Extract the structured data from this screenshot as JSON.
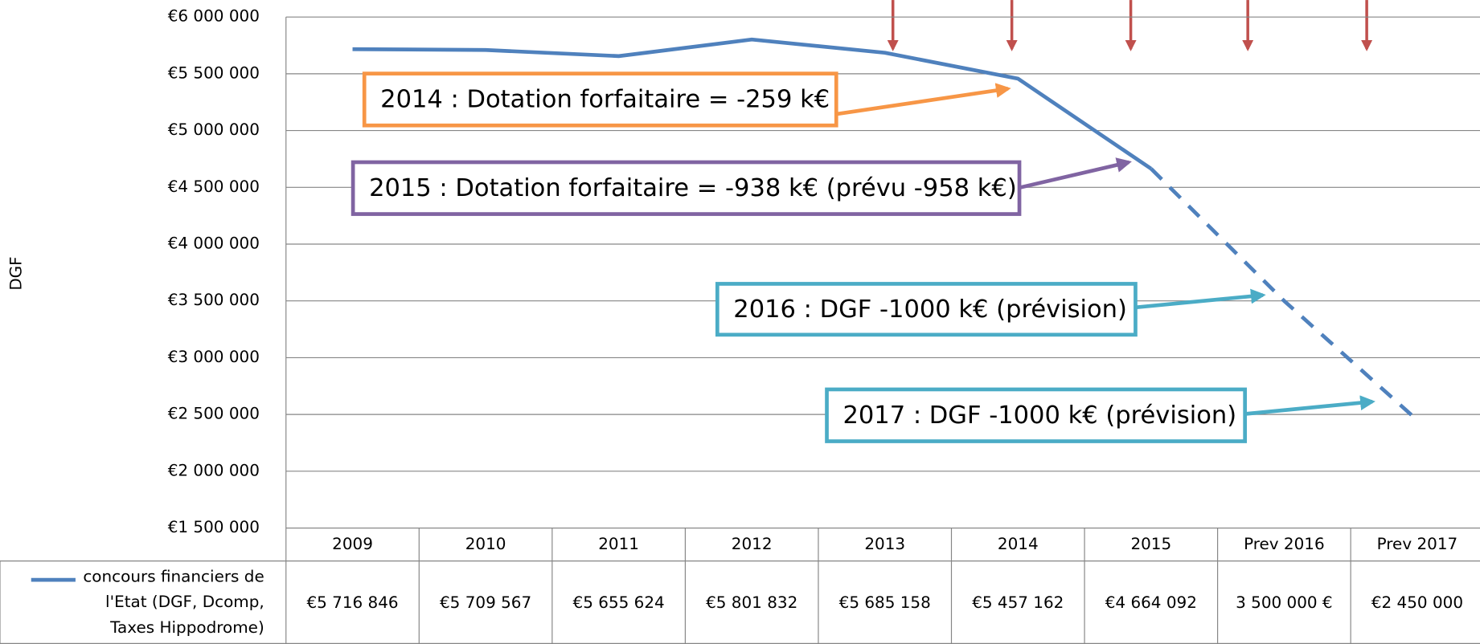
{
  "chart_data": {
    "type": "line",
    "y_axis_label": "DGF",
    "categories": [
      "2009",
      "2010",
      "2011",
      "2012",
      "2013",
      "2014",
      "2015",
      "Prev 2016",
      "Prev 2017"
    ],
    "series": [
      {
        "name": "concours financiers de l'Etat (DGF, Dcomp, Taxes Hippodrome)",
        "color": "#4f81bd",
        "values": [
          5716846,
          5709567,
          5655624,
          5801832,
          5685158,
          5457162,
          4664092,
          3500000,
          2450000
        ],
        "value_labels": [
          "€5 716 846",
          "€5 709 567",
          "€5 655 624",
          "€5 801 832",
          "€5 685 158",
          "€5 457 162",
          "€4 664 092",
          "3 500 000 €",
          "€2 450 000"
        ],
        "dashed_from": 6
      }
    ],
    "ylim": [
      1500000,
      6000000
    ],
    "yticks": [
      {
        "value": 1500000,
        "label": "€1 500 000"
      },
      {
        "value": 2000000,
        "label": "€2 000 000"
      },
      {
        "value": 2500000,
        "label": "€2 500 000"
      },
      {
        "value": 3000000,
        "label": "€3 000 000"
      },
      {
        "value": 3500000,
        "label": "€3 500 000"
      },
      {
        "value": 4000000,
        "label": "€4 000 000"
      },
      {
        "value": 4500000,
        "label": "€4 500 000"
      },
      {
        "value": 5000000,
        "label": "€5 000 000"
      },
      {
        "value": 5500000,
        "label": "€5 500 000"
      },
      {
        "value": 6000000,
        "label": "€6 000 000"
      }
    ],
    "grid": true,
    "annotations": [
      {
        "text": "2014 : Dotation forfaitaire = -259 k€",
        "color": "#f79646"
      },
      {
        "text": "2015 : Dotation forfaitaire = -938 k€ (prévu -958 k€)",
        "color": "#8064a2"
      },
      {
        "text": "2016 : DGF -1000 k€ (prévision)",
        "color": "#4bacc6"
      },
      {
        "text": "2017 : DGF -1000 k€ (prévision)",
        "color": "#4bacc6"
      }
    ]
  }
}
